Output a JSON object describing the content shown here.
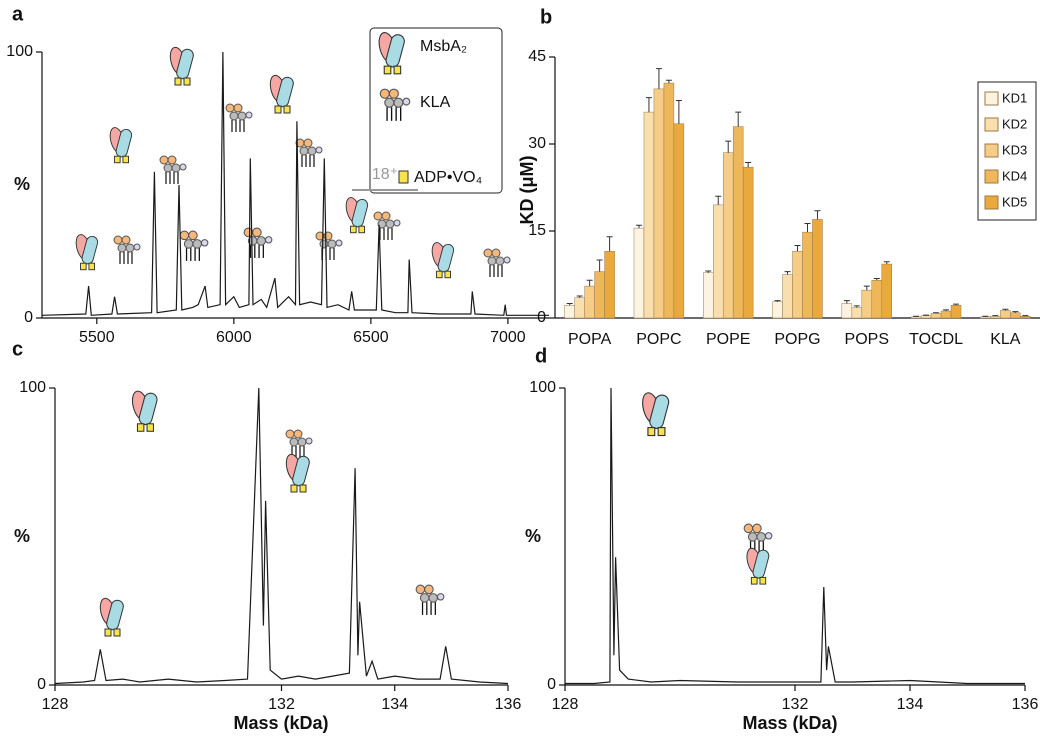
{
  "chart_data": [
    {
      "type": "spectrum",
      "panel": "a",
      "y_label": "%",
      "legend_labels": [
        "MsbA₂",
        "KLA",
        "ADP•VO₄"
      ],
      "annotation": "18⁺",
      "xlim": [
        5300,
        7150
      ],
      "xticks": [
        5500,
        6000,
        6500,
        7000
      ],
      "ylim": [
        0,
        100
      ],
      "yticks": [
        0,
        100
      ],
      "color": "#1a1a1a",
      "x": [
        5300,
        5460,
        5470,
        5480,
        5555,
        5565,
        5575,
        5700,
        5710,
        5720,
        5790,
        5800,
        5810,
        5850,
        5870,
        5895,
        5905,
        5950,
        5960,
        5970,
        6000,
        6020,
        6055,
        6060,
        6070,
        6100,
        6120,
        6150,
        6160,
        6200,
        6225,
        6230,
        6240,
        6280,
        6320,
        6330,
        6340,
        6380,
        6420,
        6430,
        6440,
        6520,
        6530,
        6540,
        6590,
        6635,
        6640,
        6650,
        6750,
        6865,
        6870,
        6880,
        6985,
        6990,
        6995,
        7150
      ],
      "values": [
        1,
        1.5,
        12,
        1,
        1.5,
        8,
        1.5,
        2,
        55,
        2,
        3,
        50,
        3,
        4,
        5,
        12,
        4,
        5,
        100,
        5,
        8,
        4,
        5,
        60,
        5,
        7,
        4,
        15,
        4,
        8,
        5,
        74,
        5,
        6,
        5,
        60,
        4,
        5,
        3,
        10,
        3,
        3,
        35,
        3,
        2,
        2,
        22,
        2,
        1.5,
        1.5,
        10,
        1.5,
        1,
        5,
        1,
        1
      ]
    },
    {
      "type": "bar",
      "panel": "b",
      "y_label": "KD (μM)",
      "categories": [
        "POPA",
        "POPC",
        "POPE",
        "POPG",
        "POPS",
        "TOCDL",
        "KLA"
      ],
      "ylim": [
        0,
        45
      ],
      "yticks": [
        0,
        15,
        30,
        45
      ],
      "legend": "top-right",
      "series": [
        {
          "name": "KD1",
          "color": "#fdf3e1",
          "values": [
            2.2,
            15.5,
            7.8,
            2.8,
            2.5,
            0.2,
            0.2
          ],
          "errors": [
            0.3,
            0.5,
            0.3,
            0.2,
            0.5,
            0.1,
            0.1
          ]
        },
        {
          "name": "KD2",
          "color": "#f9dfae",
          "values": [
            3.5,
            35.5,
            19.5,
            7.5,
            1.8,
            0.4,
            0.3
          ],
          "errors": [
            0.3,
            2.5,
            1.5,
            0.5,
            0.3,
            0.1,
            0.1
          ]
        },
        {
          "name": "KD3",
          "color": "#f5cd86",
          "values": [
            5.5,
            39.5,
            28.5,
            11.5,
            4.8,
            0.8,
            1.3
          ],
          "errors": [
            1,
            3.5,
            2,
            1,
            0.7,
            0.1,
            0.2
          ]
        },
        {
          "name": "KD4",
          "color": "#eeb75a",
          "values": [
            8,
            40.5,
            33,
            14.8,
            6.5,
            1.2,
            0.9
          ],
          "errors": [
            2,
            0.5,
            2.5,
            1.5,
            0.3,
            0.2,
            0.2
          ]
        },
        {
          "name": "KD5",
          "color": "#e9a93c",
          "values": [
            11.5,
            33.5,
            26,
            17,
            9.3,
            2.2,
            0.3
          ],
          "errors": [
            2.5,
            4,
            0.8,
            1.5,
            0.4,
            0.2,
            0.1
          ]
        }
      ]
    },
    {
      "type": "spectrum",
      "panel": "c",
      "y_label": "%",
      "x_label": "Mass (kDa)",
      "xlim": [
        128,
        136
      ],
      "xticks": [
        128,
        132,
        134,
        136
      ],
      "ylim": [
        0,
        100
      ],
      "yticks": [
        0,
        100
      ],
      "color": "#1a1a1a",
      "x": [
        128,
        128.5,
        128.7,
        128.8,
        128.9,
        129.2,
        129.5,
        130,
        130.5,
        131,
        131.4,
        131.6,
        131.68,
        131.72,
        131.8,
        132,
        132.3,
        132.6,
        132.9,
        133.2,
        133.3,
        133.35,
        133.38,
        133.5,
        133.6,
        133.7,
        134,
        134.4,
        134.8,
        134.9,
        135,
        135.5,
        136
      ],
      "values": [
        0.5,
        1,
        1.5,
        12,
        1.5,
        2,
        1,
        2,
        1,
        1.5,
        2,
        100,
        20,
        62,
        5,
        2,
        3,
        2,
        3,
        4,
        73,
        10,
        28,
        3,
        8,
        2,
        3,
        2,
        2,
        13,
        2,
        1,
        0.5
      ]
    },
    {
      "type": "spectrum",
      "panel": "d",
      "y_label": "%",
      "x_label": "Mass (kDa)",
      "xlim": [
        128,
        136
      ],
      "xticks": [
        128,
        132,
        134,
        136
      ],
      "ylim": [
        0,
        100
      ],
      "yticks": [
        0,
        100
      ],
      "color": "#1a1a1a",
      "x": [
        128,
        128.5,
        128.78,
        128.8,
        128.85,
        128.88,
        128.95,
        129.1,
        129.5,
        130,
        131,
        132,
        132.45,
        132.5,
        132.55,
        132.58,
        132.7,
        133,
        134,
        135,
        136
      ],
      "values": [
        0.5,
        0.5,
        1,
        100,
        10,
        43,
        5,
        2,
        1,
        1.5,
        1,
        1,
        1,
        33,
        5,
        13,
        1,
        1,
        1.5,
        0.5,
        0.5
      ]
    }
  ]
}
